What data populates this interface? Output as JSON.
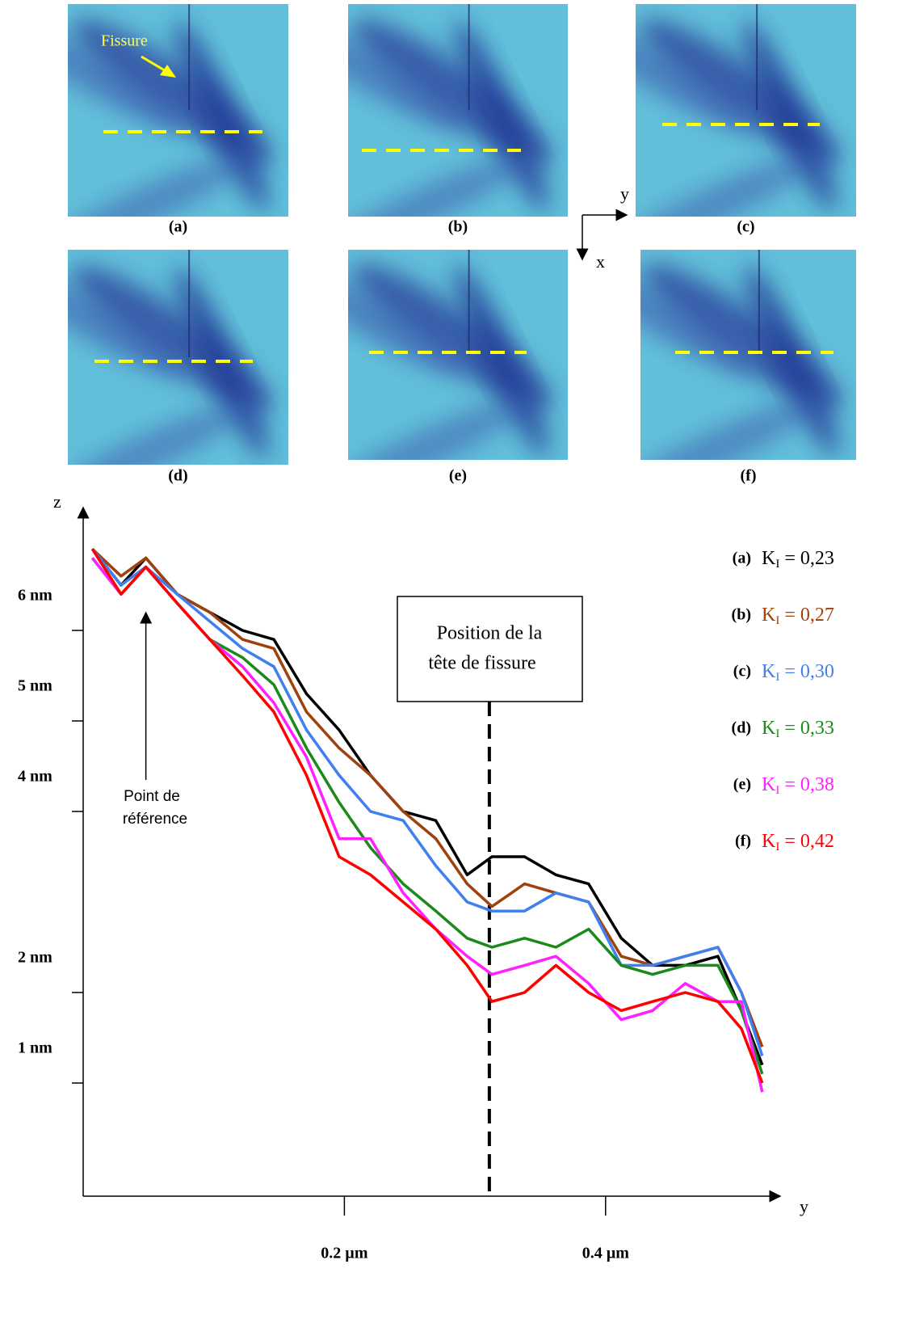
{
  "panels": [
    {
      "label": "(a)"
    },
    {
      "label": "(b)"
    },
    {
      "label": "(c)"
    },
    {
      "label": "(d)"
    },
    {
      "label": "(e)"
    },
    {
      "label": "(f)"
    }
  ],
  "panel_annotation": "Fissure",
  "orientation": {
    "x": "x",
    "y": "y"
  },
  "chart_data": {
    "type": "line",
    "x_label": "y",
    "y_label": "z",
    "x": [
      0.007,
      0.029,
      0.048,
      0.072,
      0.097,
      0.122,
      0.146,
      0.171,
      0.196,
      0.22,
      0.245,
      0.27,
      0.294,
      0.313,
      0.338,
      0.362,
      0.387,
      0.412,
      0.436,
      0.461,
      0.486,
      0.504,
      0.52
    ],
    "xlim": [
      0,
      0.53
    ],
    "xticks": [
      {
        "value": 0.2,
        "label": "0.2 µm"
      },
      {
        "value": 0.4,
        "label": "0.4 µm"
      }
    ],
    "ylim": [
      -0.25,
      7.25
    ],
    "yticks": [
      {
        "value": 6,
        "label": "6 nm"
      },
      {
        "value": 5,
        "label": "5 nm"
      },
      {
        "value": 4,
        "label": "4 nm"
      },
      {
        "value": 2,
        "label": "2 nm"
      },
      {
        "value": 1,
        "label": "1 nm"
      }
    ],
    "legend_symbol": "K",
    "legend_subscript": "I",
    "series": [
      {
        "panel": "(a)",
        "name": "= 0,23",
        "color": "#000000",
        "values": [
          6.9,
          6.5,
          6.8,
          6.4,
          6.2,
          6.0,
          5.9,
          5.3,
          4.9,
          4.4,
          4.0,
          3.9,
          3.3,
          3.5,
          3.5,
          3.3,
          3.2,
          2.6,
          2.3,
          2.3,
          2.4,
          1.8,
          1.2
        ]
      },
      {
        "panel": "(b)",
        "name": "= 0,27",
        "color": "#a0410d",
        "values": [
          6.9,
          6.6,
          6.8,
          6.4,
          6.2,
          5.9,
          5.8,
          5.1,
          4.7,
          4.4,
          4.0,
          3.7,
          3.2,
          2.95,
          3.2,
          3.1,
          3.0,
          2.4,
          2.3,
          2.4,
          2.5,
          2.0,
          1.4
        ]
      },
      {
        "panel": "(c)",
        "name": "= 0,30",
        "color": "#3f7ff0",
        "values": [
          6.9,
          6.5,
          6.7,
          6.4,
          6.1,
          5.8,
          5.6,
          4.9,
          4.4,
          4.0,
          3.9,
          3.4,
          3.0,
          2.9,
          2.9,
          3.1,
          3.0,
          2.3,
          2.3,
          2.4,
          2.5,
          2.0,
          1.3
        ]
      },
      {
        "panel": "(d)",
        "name": "= 0,33",
        "color": "#1a8a1a",
        "values": [
          6.8,
          6.4,
          6.7,
          6.3,
          5.9,
          5.7,
          5.4,
          4.7,
          4.1,
          3.6,
          3.2,
          2.9,
          2.6,
          2.5,
          2.6,
          2.5,
          2.7,
          2.3,
          2.2,
          2.3,
          2.3,
          1.8,
          1.1
        ]
      },
      {
        "panel": "(e)",
        "name": "= 0,38",
        "color": "#ff20ff",
        "values": [
          6.8,
          6.4,
          6.7,
          6.3,
          5.9,
          5.6,
          5.2,
          4.6,
          3.7,
          3.7,
          3.1,
          2.7,
          2.4,
          2.2,
          2.3,
          2.4,
          2.1,
          1.7,
          1.8,
          2.1,
          1.9,
          1.9,
          0.9
        ]
      },
      {
        "panel": "(f)",
        "name": "= 0,42",
        "color": "#ff0000",
        "values": [
          6.9,
          6.4,
          6.7,
          6.3,
          5.9,
          5.5,
          5.1,
          4.4,
          3.5,
          3.3,
          3.0,
          2.7,
          2.3,
          1.9,
          2.0,
          2.3,
          2.0,
          1.8,
          1.9,
          2.0,
          1.9,
          1.6,
          1.0
        ]
      }
    ],
    "annotations": [
      {
        "text": [
          "Position de la",
          "tête de fissure"
        ],
        "x": 0.311
      },
      {
        "text": [
          "Point de",
          "référence"
        ],
        "x": 0.048,
        "y": 6.25
      }
    ]
  }
}
